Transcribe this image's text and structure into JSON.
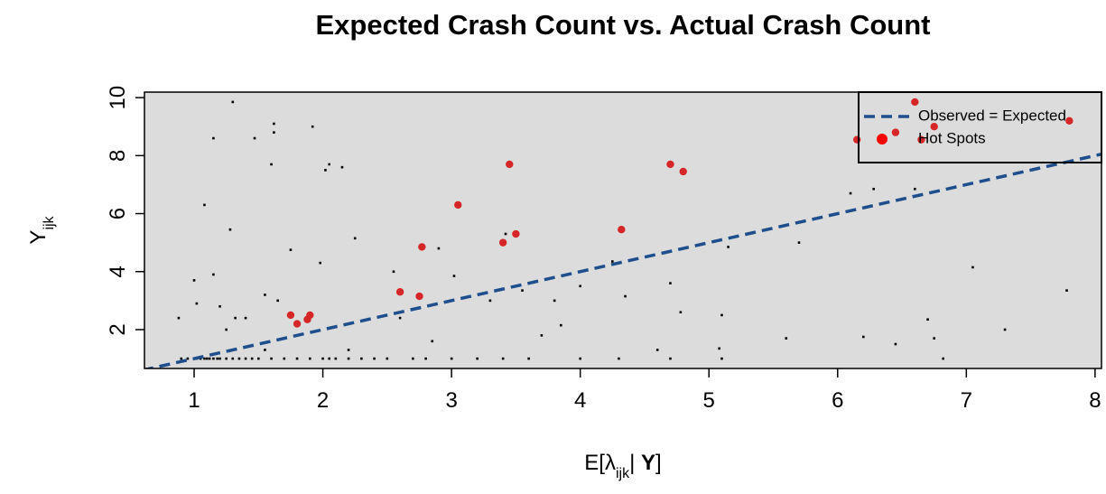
{
  "chart_data": {
    "type": "scatter",
    "title": "Expected Crash Count vs. Actual Crash Count",
    "xlabel_parts": [
      "E[λ",
      "ijk",
      "| ",
      "Y",
      "]"
    ],
    "ylabel_parts": [
      "Y",
      "ijk"
    ],
    "xlim": [
      0.614,
      8.05
    ],
    "ylim": [
      0.66,
      10.19
    ],
    "xticks": [
      1,
      2,
      3,
      4,
      5,
      6,
      7,
      8
    ],
    "yticks": [
      2,
      4,
      6,
      8,
      10
    ],
    "legend": "top-right",
    "background": "#dcdcdc",
    "series": [
      {
        "color": "#000000",
        "x": [
          0.9,
          0.95,
          1.0,
          1.02,
          1.05,
          1.08,
          1.1,
          1.12,
          1.15,
          1.18,
          1.2,
          1.25,
          1.3,
          1.35,
          1.4,
          1.45,
          1.5,
          1.6,
          1.7,
          1.8,
          1.9,
          2.0,
          2.05,
          2.1,
          2.2,
          2.3,
          2.4,
          2.5,
          2.7,
          2.8,
          3.0,
          3.2,
          3.4,
          3.6,
          4.0,
          4.3,
          4.7,
          5.1,
          0.88,
          1.0,
          1.02,
          1.08,
          1.15,
          1.15,
          1.2,
          1.25,
          1.28,
          1.3,
          1.32,
          1.4,
          1.47,
          1.55,
          1.6,
          1.62,
          1.62,
          1.65,
          1.75,
          1.92,
          1.98,
          2.02,
          2.05,
          2.15,
          2.25,
          2.3,
          2.55,
          2.6,
          2.9,
          3.02,
          3.3,
          3.42,
          3.55,
          3.8,
          4.0,
          4.25,
          4.35,
          4.7,
          4.78,
          5.1,
          5.15,
          5.6,
          5.7,
          6.1,
          6.2,
          6.28,
          6.45,
          6.6,
          6.7,
          6.75,
          7.05,
          7.3,
          7.78,
          3.7,
          3.85,
          2.85,
          2.2,
          1.55,
          4.6,
          5.08,
          6.82
        ],
        "values": [
          1,
          1,
          1,
          1,
          1,
          1,
          1,
          1,
          1,
          1,
          1,
          1,
          1,
          1,
          1,
          1,
          1,
          1,
          1,
          1,
          1,
          1,
          1,
          1,
          1,
          1,
          1,
          1,
          1,
          1,
          1,
          1,
          1,
          1,
          1,
          1,
          1,
          1,
          2.4,
          3.7,
          2.9,
          6.3,
          8.6,
          3.9,
          2.8,
          2.0,
          5.45,
          9.85,
          2.4,
          2.4,
          8.6,
          3.2,
          7.7,
          8.8,
          9.1,
          3.0,
          4.75,
          9.0,
          4.3,
          7.5,
          7.7,
          7.6,
          5.15,
          2.3,
          4.0,
          2.4,
          4.8,
          3.85,
          3.0,
          5.3,
          3.35,
          3.0,
          3.5,
          4.35,
          3.15,
          3.6,
          2.6,
          2.5,
          4.85,
          1.7,
          5.0,
          6.7,
          1.75,
          6.85,
          1.5,
          6.85,
          2.35,
          1.7,
          4.15,
          2.0,
          3.35,
          1.8,
          2.15,
          1.6,
          1.3,
          1.3,
          1.3,
          1.35,
          1.0
        ]
      },
      {
        "name": "Hot Spots",
        "color": "#d62728",
        "x": [
          1.75,
          1.8,
          1.88,
          1.9,
          2.6,
          2.75,
          2.77,
          3.05,
          3.4,
          3.45,
          3.5,
          4.32,
          4.7,
          4.8,
          6.15,
          6.45,
          6.6,
          6.65,
          6.75,
          7.8
        ],
        "values": [
          2.5,
          2.2,
          2.35,
          2.5,
          3.3,
          3.15,
          4.85,
          6.3,
          5.0,
          7.7,
          5.3,
          5.45,
          7.7,
          7.45,
          8.55,
          8.8,
          9.85,
          8.55,
          9.0,
          9.2
        ]
      },
      {
        "name": "Observed = Expected",
        "type": "line",
        "color": "#1f4e8c",
        "dash": true,
        "x": [
          0.6,
          8.1
        ],
        "values": [
          0.6,
          8.1
        ]
      }
    ]
  }
}
